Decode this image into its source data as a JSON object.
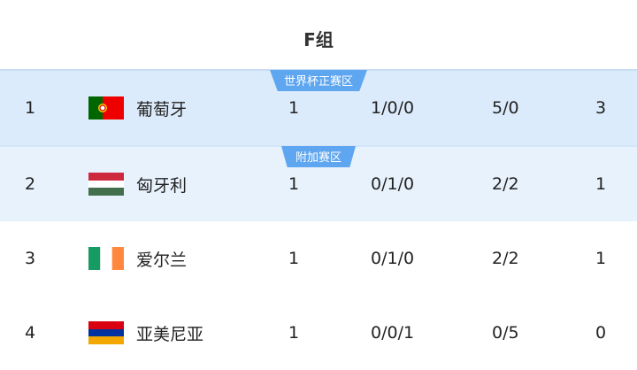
{
  "group_title": "F组",
  "rows": [
    {
      "rank": "1",
      "team": "葡萄牙",
      "flag": "portugal-flag-icon",
      "played": "1",
      "wdl": "1/0/0",
      "goals": "5/0",
      "points": "3",
      "zone_label": "世界杯正赛区"
    },
    {
      "rank": "2",
      "team": "匈牙利",
      "flag": "hungary-flag-icon",
      "played": "1",
      "wdl": "0/1/0",
      "goals": "2/2",
      "points": "1",
      "zone_label": "附加赛区"
    },
    {
      "rank": "3",
      "team": "爱尔兰",
      "flag": "ireland-flag-icon",
      "played": "1",
      "wdl": "0/1/0",
      "goals": "2/2",
      "points": "1"
    },
    {
      "rank": "4",
      "team": "亚美尼亚",
      "flag": "armenia-flag-icon",
      "played": "1",
      "wdl": "0/0/1",
      "goals": "0/5",
      "points": "0"
    }
  ],
  "colors": {
    "qualify_bg": "#dcebfb",
    "playoff_bg": "#e8f2fd",
    "badge": "#5ea6ef"
  }
}
